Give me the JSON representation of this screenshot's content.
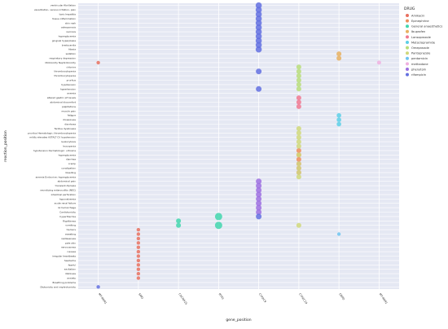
{
  "chart_data": {
    "type": "scatter",
    "title": "",
    "xlabel": "gene_position",
    "ylabel": "reaction_position",
    "grid": true,
    "legend_position": "top-right",
    "legend_title": "DRUG",
    "x_categories": [
      "MT-RNR1",
      "SMO",
      "CACNA1S",
      "RYR1",
      "CYP2C9",
      "CYP2C19",
      "G6PD",
      "MT-RNR1"
    ],
    "y_categories": [
      "ventricular fibrillation",
      "vasodilation, venous irritation, pain",
      "toxic hepatitis",
      "tissue inflammation",
      "skin rash",
      "osteoporosis",
      "necrosis",
      "hyperglycemia",
      "gingival hyperplasia",
      "bradycardia",
      "Ataxia",
      "sedation",
      "respiratory depression",
      "Ototoxicity Nephrotoxicity",
      "chlorine",
      "thrombocytopenia",
      "thrombocytopenia",
      "pruritus",
      "hypotension",
      "hypertension",
      "anemia",
      "altered gastric pH levels",
      "abdominal discomfort",
      "palpitations",
      "muscle pain",
      "fatigue",
      "drowsiness",
      "diarrhoea",
      "Tardive dyskinesia",
      "pruritus Hematologic: thrombocytopenia",
      "mildly elevates ASTALT CV hypotension",
      "leukocytosis",
      "leucopenia",
      "hypotension Dermatologic: urticaria",
      "hyperglycemia",
      "diarrhea",
      "cramp",
      "constipation",
      "bleeding",
      "anemia Endocrine: hyperglycemia",
      "abdominal pain",
      "transient diplopia",
      "necrotizing enterocolitis (NEC)",
      "intestinal perforation",
      "hyponatremia",
      "acute renal failure",
      "GI hemorrhage",
      "Cardiotoxicity",
      "hyperthermia",
      "Rigidtiness",
      "vomiting",
      "tremors",
      "sweating",
      "restlessness",
      "pale skin",
      "nervousness",
      "nausea",
      "irregular heartbeats",
      "headache",
      "fearful",
      "excitation",
      "dizziness",
      "anxiety",
      "Breathing problems",
      "Ototoxicity and nephrotoxicity"
    ],
    "series": [
      {
        "name": "Amikacin",
        "color": "#e8705f",
        "points": [
          {
            "x": 0,
            "y": 13,
            "s": 2.2
          },
          {
            "x": 1,
            "y": 51,
            "s": 2.2
          },
          {
            "x": 1,
            "y": 52,
            "s": 2.2
          },
          {
            "x": 1,
            "y": 53,
            "s": 2.2
          },
          {
            "x": 1,
            "y": 54,
            "s": 2.2
          },
          {
            "x": 1,
            "y": 55,
            "s": 2.2
          },
          {
            "x": 1,
            "y": 56,
            "s": 2.2
          },
          {
            "x": 1,
            "y": 57,
            "s": 2.2
          },
          {
            "x": 1,
            "y": 58,
            "s": 2.2
          },
          {
            "x": 1,
            "y": 59,
            "s": 2.2
          },
          {
            "x": 1,
            "y": 60,
            "s": 2.2
          },
          {
            "x": 1,
            "y": 61,
            "s": 2.2
          },
          {
            "x": 1,
            "y": 62,
            "s": 2.2
          }
        ]
      },
      {
        "name": "Epinephrine",
        "color": "#ee8e5a",
        "points": [
          {
            "x": 5,
            "y": 33,
            "s": 3
          },
          {
            "x": 5,
            "y": 34,
            "s": 3
          },
          {
            "x": 5,
            "y": 35,
            "s": 3
          }
        ]
      },
      {
        "name": "General anaesthetics",
        "color": "#42d6ad",
        "points": [
          {
            "x": 2,
            "y": 49,
            "s": 3
          },
          {
            "x": 2,
            "y": 50,
            "s": 3
          },
          {
            "x": 3,
            "y": 48,
            "s": 4.5
          },
          {
            "x": 3,
            "y": 50,
            "s": 4.5
          }
        ]
      },
      {
        "name": "Ibuprofen",
        "color": "#e8b060",
        "points": [
          {
            "x": 6,
            "y": 11,
            "s": 3
          },
          {
            "x": 6,
            "y": 12,
            "s": 3
          }
        ]
      },
      {
        "name": "Lansoprazole",
        "color": "#f07890",
        "points": [
          {
            "x": 5,
            "y": 21,
            "s": 3
          },
          {
            "x": 5,
            "y": 22,
            "s": 3
          },
          {
            "x": 5,
            "y": 23,
            "s": 3
          },
          {
            "x": 5,
            "y": 36,
            "s": 3
          },
          {
            "x": 5,
            "y": 37,
            "s": 3
          },
          {
            "x": 5,
            "y": 38,
            "s": 3
          }
        ]
      },
      {
        "name": "Metoclopramide",
        "color": "#5ccfe6",
        "points": [
          {
            "x": 6,
            "y": 25,
            "s": 2.8
          },
          {
            "x": 6,
            "y": 26,
            "s": 2.8
          },
          {
            "x": 6,
            "y": 27,
            "s": 2.8
          }
        ]
      },
      {
        "name": "Omeprazole",
        "color": "#b8dd7a",
        "points": [
          {
            "x": 5,
            "y": 14,
            "s": 3
          },
          {
            "x": 5,
            "y": 15,
            "s": 3
          },
          {
            "x": 5,
            "y": 16,
            "s": 3
          },
          {
            "x": 5,
            "y": 17,
            "s": 3
          },
          {
            "x": 5,
            "y": 18,
            "s": 3
          },
          {
            "x": 5,
            "y": 19,
            "s": 3
          }
        ]
      },
      {
        "name": "Pantoprazole",
        "color": "#d0d87a",
        "points": [
          {
            "x": 5,
            "y": 28,
            "s": 3
          },
          {
            "x": 5,
            "y": 29,
            "s": 3
          },
          {
            "x": 5,
            "y": 30,
            "s": 3
          },
          {
            "x": 5,
            "y": 31,
            "s": 3
          },
          {
            "x": 5,
            "y": 32,
            "s": 3
          },
          {
            "x": 5,
            "y": 34,
            "s": 3
          },
          {
            "x": 5,
            "y": 36,
            "s": 3
          },
          {
            "x": 5,
            "y": 37,
            "s": 3
          },
          {
            "x": 5,
            "y": 38,
            "s": 3
          },
          {
            "x": 5,
            "y": 39,
            "s": 3
          },
          {
            "x": 5,
            "y": 50,
            "s": 3
          }
        ]
      },
      {
        "name": "pentamicin",
        "color": "#6ec4f0",
        "points": [
          {
            "x": 6,
            "y": 52,
            "s": 2.2
          }
        ]
      },
      {
        "name": "methadone",
        "color": "#f0b0e0",
        "points": [
          {
            "x": 7,
            "y": 13,
            "s": 2.5
          }
        ]
      },
      {
        "name": "phenytoin",
        "color": "#9d70e0",
        "points": [
          {
            "x": 4,
            "y": 40,
            "s": 3.5
          },
          {
            "x": 4,
            "y": 41,
            "s": 3.5
          },
          {
            "x": 4,
            "y": 42,
            "s": 3.5
          },
          {
            "x": 4,
            "y": 43,
            "s": 3.5
          },
          {
            "x": 4,
            "y": 44,
            "s": 3.5
          },
          {
            "x": 4,
            "y": 45,
            "s": 3.5
          },
          {
            "x": 4,
            "y": 46,
            "s": 3.5
          },
          {
            "x": 4,
            "y": 47,
            "s": 3.5
          }
        ]
      },
      {
        "name": "rifampicin",
        "color": "#6370e0",
        "points": [
          {
            "x": 4,
            "y": 0,
            "s": 3.8
          },
          {
            "x": 4,
            "y": 1,
            "s": 3.8
          },
          {
            "x": 4,
            "y": 2,
            "s": 3.8
          },
          {
            "x": 4,
            "y": 3,
            "s": 3.8
          },
          {
            "x": 4,
            "y": 4,
            "s": 3.8
          },
          {
            "x": 4,
            "y": 5,
            "s": 3.8
          },
          {
            "x": 4,
            "y": 6,
            "s": 3.8
          },
          {
            "x": 4,
            "y": 7,
            "s": 3.8
          },
          {
            "x": 4,
            "y": 8,
            "s": 3.8
          },
          {
            "x": 4,
            "y": 9,
            "s": 3.8
          },
          {
            "x": 4,
            "y": 10,
            "s": 3.8
          },
          {
            "x": 4,
            "y": 15,
            "s": 3.5
          },
          {
            "x": 4,
            "y": 19,
            "s": 3.5
          },
          {
            "x": 4,
            "y": 48,
            "s": 3.5
          },
          {
            "x": 0,
            "y": 64,
            "s": 2.2
          }
        ]
      }
    ]
  }
}
